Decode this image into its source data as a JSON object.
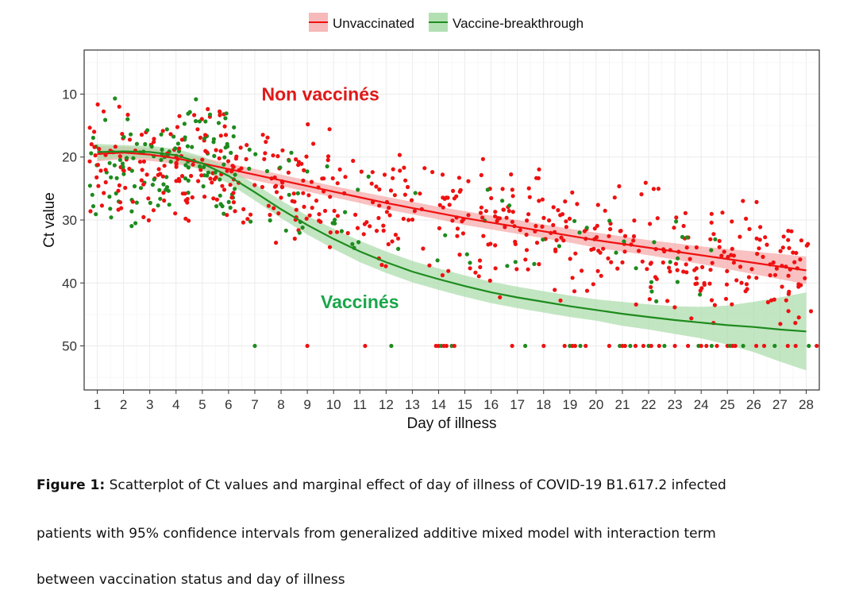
{
  "chart_data": {
    "type": "scatter",
    "xlabel": "Day of illness",
    "ylabel": "Ct value",
    "x_ticks": [
      1,
      2,
      3,
      4,
      5,
      6,
      7,
      8,
      9,
      10,
      11,
      12,
      13,
      14,
      15,
      16,
      17,
      18,
      19,
      20,
      21,
      22,
      23,
      24,
      25,
      26,
      27,
      28
    ],
    "xlim": [
      0.5,
      28.5
    ],
    "y_ticks": [
      10,
      20,
      30,
      40,
      50
    ],
    "ylim": [
      3,
      57
    ],
    "y_reversed": true,
    "grid": true,
    "legend_position": "top",
    "series": [
      {
        "name": "Unvaccinated",
        "color": "#ee1111",
        "band_color": "#f6a6a6",
        "fit_x": [
          1,
          2,
          3,
          4,
          5,
          6,
          7,
          8,
          9,
          10,
          11,
          12,
          13,
          14,
          15,
          16,
          17,
          18,
          19,
          20,
          21,
          22,
          23,
          24,
          25,
          26,
          27,
          28
        ],
        "fit_y": [
          19.5,
          19.3,
          19.6,
          20.2,
          21.0,
          21.9,
          22.8,
          23.7,
          24.6,
          25.5,
          26.4,
          27.3,
          28.1,
          28.9,
          29.7,
          30.4,
          31.1,
          31.8,
          32.5,
          33.2,
          33.8,
          34.4,
          35.0,
          35.6,
          36.2,
          36.8,
          37.4,
          38.0
        ],
        "ci_lower": [
          18.3,
          18.3,
          18.6,
          19.3,
          20.1,
          21.0,
          21.9,
          22.8,
          23.7,
          24.6,
          25.5,
          26.3,
          27.1,
          27.9,
          28.6,
          29.3,
          30.0,
          30.7,
          31.4,
          32.0,
          32.6,
          33.2,
          33.7,
          34.2,
          34.6,
          35.0,
          35.4,
          35.8
        ],
        "ci_upper": [
          20.7,
          20.3,
          20.6,
          21.1,
          21.9,
          22.8,
          23.7,
          24.6,
          25.5,
          26.4,
          27.3,
          28.3,
          29.1,
          29.9,
          30.8,
          31.5,
          32.2,
          32.9,
          33.6,
          34.4,
          35.0,
          35.6,
          36.3,
          37.0,
          37.8,
          38.6,
          39.4,
          40.2
        ]
      },
      {
        "name": "Vaccine-breakthrough",
        "color": "#1e8b1e",
        "band_color": "#a8dca8",
        "fit_x": [
          1,
          2,
          3,
          4,
          5,
          6,
          7,
          8,
          9,
          10,
          11,
          12,
          13,
          14,
          15,
          16,
          17,
          18,
          19,
          20,
          21,
          22,
          23,
          24,
          25,
          26,
          27,
          28
        ],
        "fit_y": [
          19.2,
          19.1,
          19.2,
          19.7,
          21.0,
          23.0,
          25.6,
          28.3,
          30.8,
          33.0,
          35.0,
          36.7,
          38.2,
          39.4,
          40.5,
          41.5,
          42.3,
          43.0,
          43.7,
          44.3,
          44.9,
          45.4,
          45.9,
          46.3,
          46.7,
          47.0,
          47.4,
          47.7
        ],
        "ci_lower": [
          17.9,
          18.1,
          18.2,
          18.7,
          19.9,
          21.8,
          24.3,
          26.9,
          29.3,
          31.4,
          33.3,
          35.0,
          36.5,
          37.7,
          38.8,
          39.8,
          40.6,
          41.3,
          42.0,
          42.6,
          43.0,
          43.4,
          43.7,
          43.8,
          43.6,
          43.0,
          42.3,
          41.5
        ],
        "ci_upper": [
          20.5,
          20.1,
          20.2,
          20.7,
          22.1,
          24.2,
          26.9,
          29.7,
          32.3,
          34.6,
          36.7,
          38.4,
          39.9,
          41.1,
          42.2,
          43.2,
          44.0,
          44.7,
          45.4,
          46.0,
          46.8,
          47.4,
          48.1,
          48.8,
          49.8,
          51.0,
          52.5,
          53.9
        ]
      }
    ],
    "annotations": [
      {
        "text": "Non vaccinés",
        "x": 9.5,
        "y": 10,
        "color": "#e01818"
      },
      {
        "text": "Vaccinés",
        "x": 11,
        "y": 43,
        "color": "#1aa64a"
      }
    ],
    "scatter_note": "Several hundred individual patient points per group (red = Unvaccinated, green = Vaccine-breakthrough) spread around the fitted curves, with a row of points at Ct 50 (negative samples)."
  },
  "caption": {
    "label": "Figure 1:",
    "line1": "Scatterplot of Ct values and marginal effect of day of illness of COVID-19 B1.617.2 infected",
    "line2": "patients with 95% confidence intervals from generalized additive mixed model with interaction term",
    "line3": "between vaccination status and day of illness"
  }
}
